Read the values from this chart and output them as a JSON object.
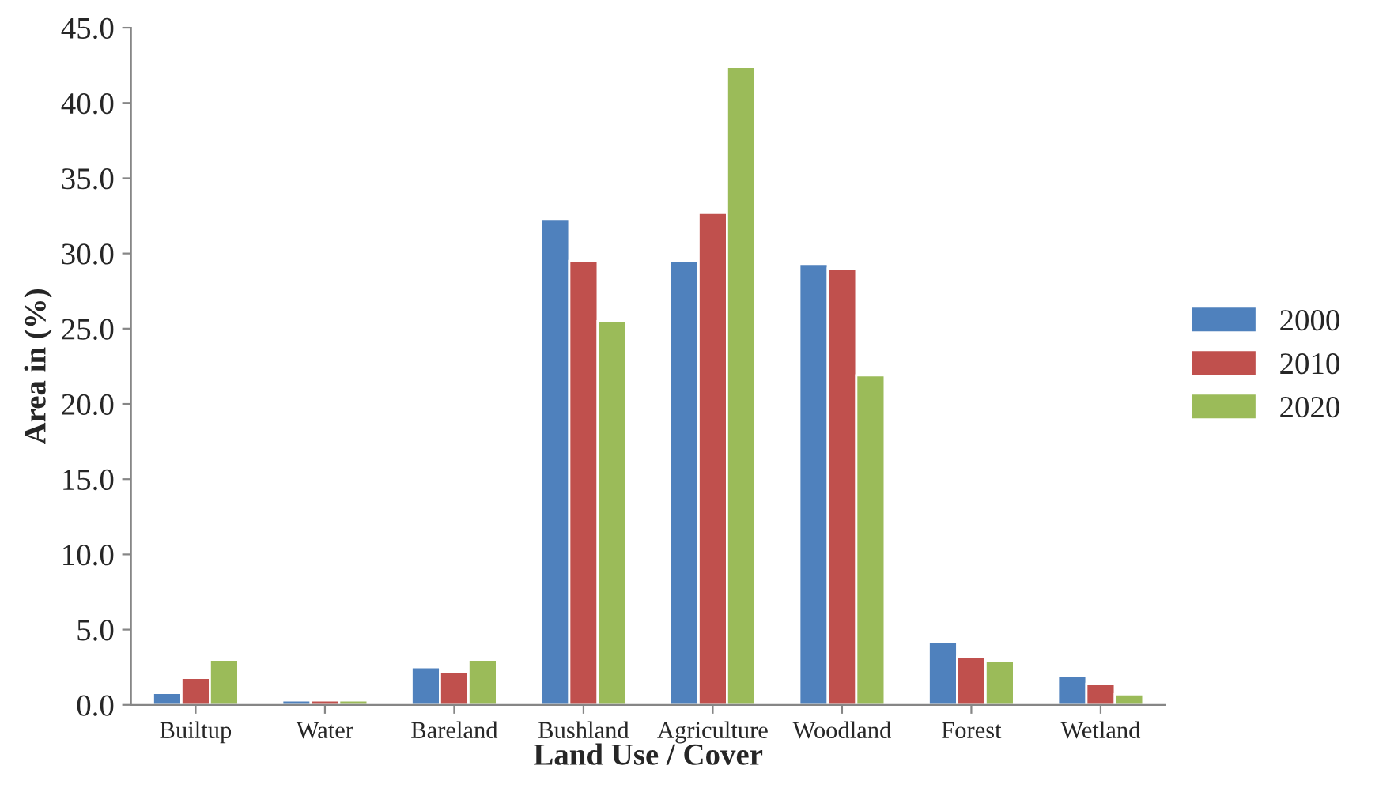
{
  "chart_data": {
    "type": "bar",
    "xlabel": "Land Use / Cover",
    "ylabel": "Area in (%)",
    "categories": [
      "Builtup",
      "Water",
      "Bareland",
      "Bushland",
      "Agriculture",
      "Woodland",
      "Forest",
      "Wetland"
    ],
    "series": [
      {
        "name": "2000",
        "color": "#4f81bd",
        "values": [
          0.8,
          0.3,
          2.5,
          32.3,
          29.5,
          29.3,
          4.2,
          1.9
        ]
      },
      {
        "name": "2010",
        "color": "#c0504d",
        "values": [
          1.8,
          0.3,
          2.2,
          29.5,
          32.7,
          29.0,
          3.2,
          1.4
        ]
      },
      {
        "name": "2020",
        "color": "#9bbb59",
        "values": [
          3.0,
          0.3,
          3.0,
          25.5,
          42.4,
          21.9,
          2.9,
          0.7
        ]
      }
    ],
    "ylim": [
      0,
      45
    ],
    "yticks": [
      {
        "value": 0,
        "label": "0.0"
      },
      {
        "value": 5,
        "label": "5.0"
      },
      {
        "value": 10,
        "label": "10.0"
      },
      {
        "value": 15,
        "label": "15.0"
      },
      {
        "value": 20,
        "label": "20.0"
      },
      {
        "value": 25,
        "label": "25.0"
      },
      {
        "value": 30,
        "label": "30.0"
      },
      {
        "value": 35,
        "label": "35.0"
      },
      {
        "value": 40,
        "label": "40.0"
      },
      {
        "value": 45,
        "label": "45.0"
      }
    ],
    "grid": false,
    "legend": "right"
  }
}
